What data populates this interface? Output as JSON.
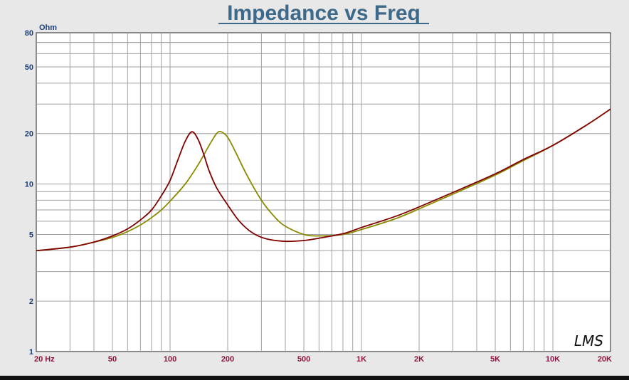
{
  "chart_data": {
    "type": "line",
    "title": "Impedance vs Freq",
    "ylabel": "Ohm",
    "xscale": "log",
    "yscale": "log",
    "xlim": [
      20,
      20000
    ],
    "ylim": [
      1,
      80
    ],
    "grid": true,
    "xticks": [
      {
        "value": 20,
        "label": "20  Hz"
      },
      {
        "value": 50,
        "label": "50"
      },
      {
        "value": 100,
        "label": "100"
      },
      {
        "value": 200,
        "label": "200"
      },
      {
        "value": 500,
        "label": "500"
      },
      {
        "value": 1000,
        "label": "1K"
      },
      {
        "value": 2000,
        "label": "2K"
      },
      {
        "value": 5000,
        "label": "5K"
      },
      {
        "value": 10000,
        "label": "10K"
      },
      {
        "value": 20000,
        "label": "20K"
      }
    ],
    "yticks": [
      {
        "value": 80,
        "label": "80"
      },
      {
        "value": 50,
        "label": "50"
      },
      {
        "value": 20,
        "label": "20"
      },
      {
        "value": 10,
        "label": "10"
      },
      {
        "value": 5,
        "label": "5"
      },
      {
        "value": 2,
        "label": "2"
      },
      {
        "value": 1,
        "label": "1"
      }
    ],
    "series": [
      {
        "color": "#800000",
        "points": [
          [
            20,
            4.0
          ],
          [
            30,
            4.2
          ],
          [
            40,
            4.5
          ],
          [
            50,
            4.9
          ],
          [
            60,
            5.4
          ],
          [
            70,
            6.1
          ],
          [
            80,
            7.0
          ],
          [
            90,
            8.5
          ],
          [
            100,
            10.5
          ],
          [
            110,
            14.0
          ],
          [
            120,
            18.0
          ],
          [
            130,
            20.5
          ],
          [
            140,
            18.5
          ],
          [
            150,
            15.0
          ],
          [
            160,
            12.0
          ],
          [
            175,
            9.5
          ],
          [
            200,
            7.5
          ],
          [
            230,
            6.0
          ],
          [
            270,
            5.1
          ],
          [
            320,
            4.7
          ],
          [
            400,
            4.55
          ],
          [
            500,
            4.6
          ],
          [
            600,
            4.75
          ],
          [
            800,
            5.05
          ],
          [
            1000,
            5.5
          ],
          [
            1500,
            6.4
          ],
          [
            2000,
            7.3
          ],
          [
            3000,
            8.9
          ],
          [
            5000,
            11.5
          ],
          [
            7000,
            14.0
          ],
          [
            10000,
            17.0
          ],
          [
            15000,
            22.5
          ],
          [
            20000,
            28.0
          ]
        ]
      },
      {
        "color": "#8a8a00",
        "points": [
          [
            20,
            4.0
          ],
          [
            30,
            4.2
          ],
          [
            40,
            4.5
          ],
          [
            50,
            4.8
          ],
          [
            60,
            5.2
          ],
          [
            70,
            5.7
          ],
          [
            80,
            6.3
          ],
          [
            90,
            7.0
          ],
          [
            100,
            7.9
          ],
          [
            120,
            10.0
          ],
          [
            140,
            13.0
          ],
          [
            160,
            17.0
          ],
          [
            175,
            20.0
          ],
          [
            185,
            20.5
          ],
          [
            200,
            19.0
          ],
          [
            220,
            15.5
          ],
          [
            250,
            11.5
          ],
          [
            300,
            8.0
          ],
          [
            350,
            6.4
          ],
          [
            400,
            5.6
          ],
          [
            500,
            5.0
          ],
          [
            600,
            4.9
          ],
          [
            800,
            5.0
          ],
          [
            1000,
            5.35
          ],
          [
            1500,
            6.2
          ],
          [
            2000,
            7.1
          ],
          [
            3000,
            8.7
          ],
          [
            5000,
            11.3
          ],
          [
            7000,
            13.8
          ],
          [
            10000,
            17.0
          ],
          [
            15000,
            22.5
          ],
          [
            20000,
            28.0
          ]
        ]
      }
    ],
    "annotations": [
      {
        "text": "LMS",
        "position": "bottom-right",
        "style": "handwritten"
      }
    ]
  },
  "colors": {
    "background": "#e8e8e8",
    "plot_background": "#ffffff",
    "grid": "#a0a0a0",
    "title": "#3d6a8a",
    "x_tick_labels": "#8a1040",
    "y_tick_labels": "#1f3f7a"
  }
}
